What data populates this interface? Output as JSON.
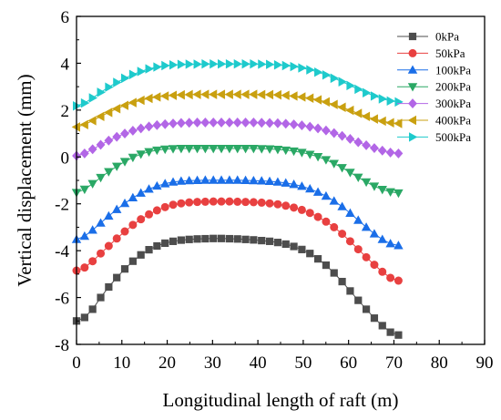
{
  "chart_data": {
    "type": "line",
    "title": "",
    "xlabel": "Longitudinal length of raft (m)",
    "ylabel": "Vertical displacement (mm)",
    "xlim": [
      0,
      90
    ],
    "ylim": [
      -8,
      6
    ],
    "xticks": [
      0,
      10,
      20,
      30,
      40,
      50,
      60,
      70,
      80,
      90
    ],
    "yticks": [
      -8,
      -6,
      -4,
      -2,
      0,
      2,
      4,
      6
    ],
    "grid": false,
    "legend_position": "top-right",
    "x": [
      0,
      1.78,
      3.55,
      5.33,
      7.1,
      8.88,
      10.65,
      12.43,
      14.2,
      15.98,
      17.75,
      19.53,
      21.3,
      23.08,
      24.85,
      26.63,
      28.4,
      30.18,
      31.95,
      33.73,
      35.5,
      37.28,
      39.05,
      40.83,
      42.6,
      44.38,
      46.15,
      47.93,
      49.7,
      51.48,
      53.25,
      55.03,
      56.8,
      58.58,
      60.35,
      62.13,
      63.9,
      65.68,
      67.45,
      69.23,
      71.0
    ],
    "series": [
      {
        "name": "0kPa",
        "color": "#4d4d4d",
        "marker": "square",
        "values": [
          -7.0,
          -6.85,
          -6.5,
          -6.0,
          -5.55,
          -5.15,
          -4.78,
          -4.45,
          -4.18,
          -3.96,
          -3.8,
          -3.68,
          -3.6,
          -3.55,
          -3.52,
          -3.5,
          -3.49,
          -3.48,
          -3.48,
          -3.49,
          -3.5,
          -3.52,
          -3.54,
          -3.57,
          -3.6,
          -3.65,
          -3.72,
          -3.82,
          -3.95,
          -4.12,
          -4.35,
          -4.62,
          -4.95,
          -5.32,
          -5.72,
          -6.12,
          -6.5,
          -6.88,
          -7.2,
          -7.48,
          -7.6
        ]
      },
      {
        "name": "50kPa",
        "color": "#e84040",
        "marker": "circle",
        "values": [
          -4.85,
          -4.72,
          -4.45,
          -4.12,
          -3.8,
          -3.48,
          -3.18,
          -2.9,
          -2.66,
          -2.45,
          -2.28,
          -2.14,
          -2.04,
          -1.98,
          -1.94,
          -1.92,
          -1.91,
          -1.9,
          -1.9,
          -1.9,
          -1.91,
          -1.92,
          -1.93,
          -1.95,
          -1.98,
          -2.02,
          -2.08,
          -2.16,
          -2.26,
          -2.39,
          -2.56,
          -2.76,
          -3.0,
          -3.28,
          -3.6,
          -3.94,
          -4.28,
          -4.6,
          -4.9,
          -5.16,
          -5.28
        ]
      },
      {
        "name": "100kPa",
        "color": "#1a6ee8",
        "marker": "triangle-up",
        "values": [
          -3.52,
          -3.38,
          -3.12,
          -2.82,
          -2.52,
          -2.24,
          -1.98,
          -1.74,
          -1.54,
          -1.37,
          -1.24,
          -1.14,
          -1.07,
          -1.03,
          -1.01,
          -1.0,
          -0.99,
          -0.99,
          -0.99,
          -0.99,
          -0.99,
          -1.0,
          -1.01,
          -1.02,
          -1.04,
          -1.07,
          -1.11,
          -1.17,
          -1.25,
          -1.36,
          -1.5,
          -1.67,
          -1.88,
          -2.12,
          -2.4,
          -2.7,
          -3.0,
          -3.28,
          -3.52,
          -3.7,
          -3.78
        ]
      },
      {
        "name": "200kPa",
        "color": "#2aa865",
        "marker": "triangle-down",
        "values": [
          -1.52,
          -1.38,
          -1.14,
          -0.88,
          -0.63,
          -0.4,
          -0.2,
          -0.02,
          0.12,
          0.22,
          0.29,
          0.33,
          0.35,
          0.36,
          0.36,
          0.36,
          0.36,
          0.36,
          0.36,
          0.36,
          0.36,
          0.36,
          0.36,
          0.35,
          0.34,
          0.32,
          0.29,
          0.25,
          0.19,
          0.11,
          0.01,
          -0.12,
          -0.28,
          -0.46,
          -0.66,
          -0.87,
          -1.07,
          -1.25,
          -1.39,
          -1.49,
          -1.54
        ]
      },
      {
        "name": "300kPa",
        "color": "#b266e6",
        "marker": "diamond",
        "values": [
          0.05,
          0.15,
          0.33,
          0.52,
          0.7,
          0.86,
          1.0,
          1.12,
          1.22,
          1.3,
          1.36,
          1.4,
          1.43,
          1.45,
          1.46,
          1.47,
          1.47,
          1.47,
          1.47,
          1.47,
          1.47,
          1.47,
          1.47,
          1.46,
          1.45,
          1.44,
          1.42,
          1.39,
          1.35,
          1.29,
          1.22,
          1.13,
          1.02,
          0.9,
          0.77,
          0.63,
          0.5,
          0.38,
          0.27,
          0.19,
          0.15
        ]
      },
      {
        "name": "400kPa",
        "color": "#c9a010",
        "marker": "triangle-left",
        "values": [
          1.28,
          1.38,
          1.55,
          1.73,
          1.9,
          2.06,
          2.2,
          2.32,
          2.42,
          2.5,
          2.56,
          2.6,
          2.63,
          2.65,
          2.66,
          2.67,
          2.67,
          2.67,
          2.67,
          2.67,
          2.67,
          2.67,
          2.67,
          2.66,
          2.66,
          2.65,
          2.63,
          2.6,
          2.56,
          2.51,
          2.44,
          2.35,
          2.24,
          2.12,
          1.99,
          1.86,
          1.73,
          1.62,
          1.53,
          1.46,
          1.43
        ]
      },
      {
        "name": "500kPa",
        "color": "#1ecacc",
        "marker": "triangle-right",
        "values": [
          2.18,
          2.3,
          2.52,
          2.76,
          2.98,
          3.18,
          3.36,
          3.52,
          3.65,
          3.76,
          3.84,
          3.9,
          3.93,
          3.95,
          3.96,
          3.96,
          3.97,
          3.97,
          3.97,
          3.97,
          3.97,
          3.97,
          3.97,
          3.96,
          3.95,
          3.93,
          3.9,
          3.86,
          3.8,
          3.72,
          3.62,
          3.5,
          3.36,
          3.21,
          3.05,
          2.89,
          2.74,
          2.6,
          2.48,
          2.39,
          2.35
        ]
      }
    ]
  }
}
